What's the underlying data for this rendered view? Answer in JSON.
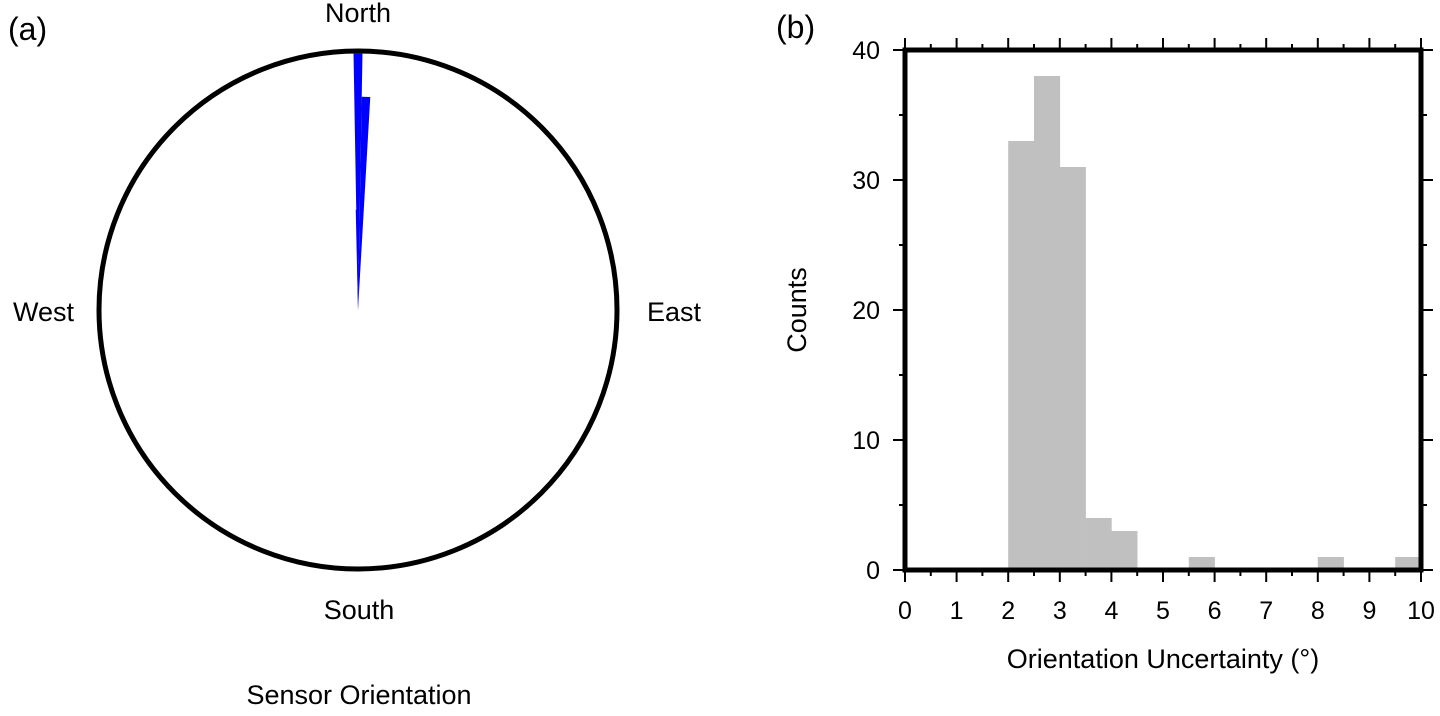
{
  "colors": {
    "rose": "#0000ff",
    "bars": "#c0c0c0",
    "frame": "#000000"
  },
  "chart_data": [
    {
      "type": "rose",
      "panel": "(a)",
      "title": "Sensor Orientation",
      "directions": {
        "north": "North",
        "east": "East",
        "south": "South",
        "west": "West"
      },
      "petals_deg": [
        {
          "from": -1,
          "to": 1,
          "r": 1.0
        },
        {
          "from": 1,
          "to": 3.3,
          "r": 0.83
        },
        {
          "from": -1.3,
          "to": 0,
          "r": 0.39
        },
        {
          "from": 1,
          "to": 2,
          "r": 0.18
        }
      ]
    },
    {
      "type": "bar",
      "panel": "(b)",
      "xlabel": "Orientation Uncertainty (°)",
      "ylabel": "Counts",
      "xlim": [
        0,
        10
      ],
      "ylim": [
        0,
        40
      ],
      "bin_width": 0.5,
      "x_ticks": [
        "0",
        "1",
        "2",
        "3",
        "4",
        "5",
        "6",
        "7",
        "8",
        "9",
        "10"
      ],
      "y_ticks": [
        "0",
        "10",
        "20",
        "30",
        "40"
      ],
      "bins": [
        {
          "x": 2.0,
          "count": 33
        },
        {
          "x": 2.5,
          "count": 38
        },
        {
          "x": 3.0,
          "count": 31
        },
        {
          "x": 3.5,
          "count": 4
        },
        {
          "x": 4.0,
          "count": 3
        },
        {
          "x": 5.5,
          "count": 1
        },
        {
          "x": 8.0,
          "count": 1
        },
        {
          "x": 9.5,
          "count": 1
        }
      ]
    }
  ]
}
